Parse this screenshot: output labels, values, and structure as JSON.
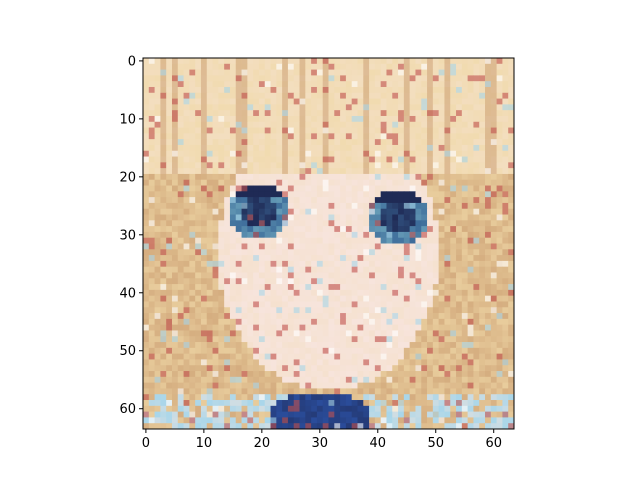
{
  "chart_data": {
    "type": "heatmap",
    "title": "",
    "xlabel": "",
    "ylabel": "",
    "grid": false,
    "image_size": [
      64,
      64
    ],
    "xlim": [
      -0.5,
      63.5
    ],
    "ylim": [
      63.5,
      -0.5
    ],
    "x_ticks": [
      0,
      10,
      20,
      30,
      40,
      50,
      60
    ],
    "y_ticks": [
      0,
      10,
      20,
      30,
      40,
      50,
      60
    ],
    "x_tick_labels": [
      "0",
      "10",
      "20",
      "30",
      "40",
      "50",
      "60"
    ],
    "y_tick_labels": [
      "0",
      "10",
      "20",
      "30",
      "40",
      "50",
      "60"
    ],
    "content": "64×64 low-resolution generated image of an anime-style face with blonde hair and blue eyes",
    "palette": {
      "hair": "#f0d9a8",
      "hair_shadow": "#c99a6e",
      "skin": "#f7e4dc",
      "eye_dark": "#1f2a55",
      "eye_mid": "#3d6c9a",
      "eye_light": "#7fb9c8",
      "collar_blue": "#2a4c9a",
      "collar_light": "#a8d6ea",
      "accent_red": "#c0504d"
    }
  }
}
